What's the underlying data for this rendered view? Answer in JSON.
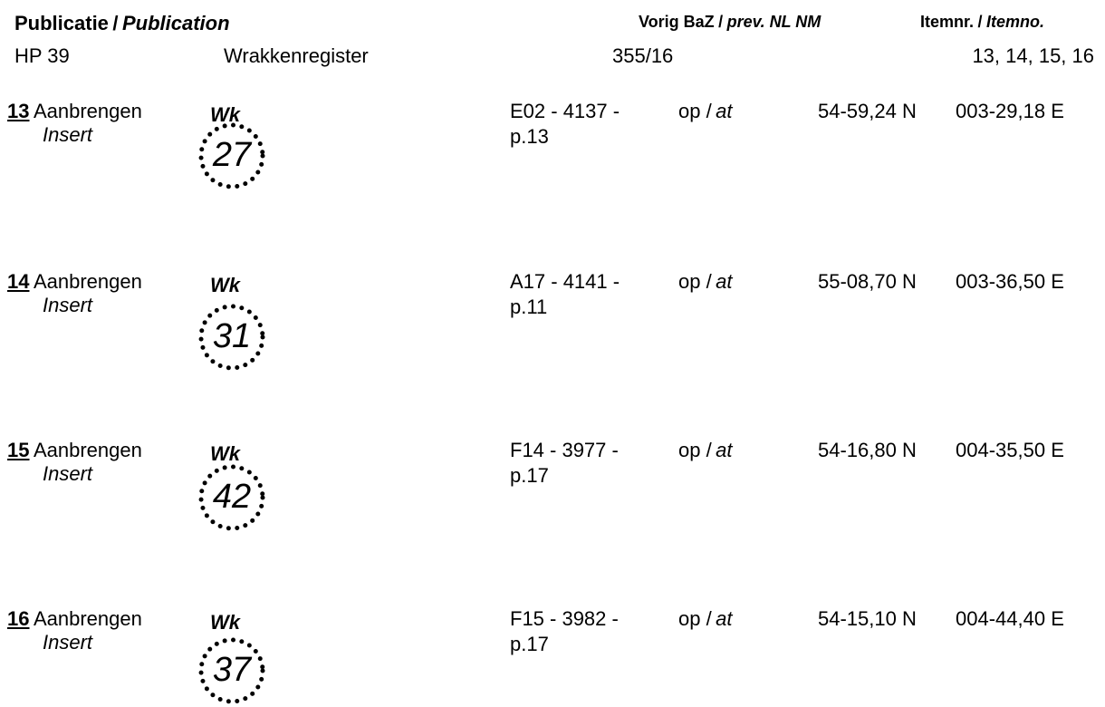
{
  "header": {
    "publication_nl": "Publicatie",
    "slash": "/",
    "publication_en": "Publication",
    "publication_value": "HP 39",
    "register_name": "Wrakkenregister",
    "prev_nl": "Vorig BaZ",
    "prev_en": "prev. NL NM",
    "prev_value": "355/16",
    "itemno_nl": "Itemnr.",
    "itemno_en": "Itemno.",
    "itemno_value": "13, 14, 15, 16"
  },
  "items": [
    {
      "number": "13",
      "action_nl": "Aanbrengen",
      "action_en": "Insert",
      "symbol_label": "Wk",
      "symbol_number": "27",
      "chart_ref": "E02 - 4137 -",
      "page_ref": "p.13",
      "at_nl": "op /",
      "at_en": "at",
      "lat": "54-59,24 N",
      "lon": "003-29,18 E"
    },
    {
      "number": "14",
      "action_nl": "Aanbrengen",
      "action_en": "Insert",
      "symbol_label": "Wk",
      "symbol_number": "31",
      "chart_ref": "A17 - 4141 -",
      "page_ref": "p.11",
      "at_nl": "op /",
      "at_en": "at",
      "lat": "55-08,70 N",
      "lon": "003-36,50 E"
    },
    {
      "number": "15",
      "action_nl": "Aanbrengen",
      "action_en": "Insert",
      "symbol_label": "Wk",
      "symbol_number": "42",
      "chart_ref": "F14 - 3977 -",
      "page_ref": "p.17",
      "at_nl": "op /",
      "at_en": "at",
      "lat": "54-16,80 N",
      "lon": "004-35,50 E"
    },
    {
      "number": "16",
      "action_nl": "Aanbrengen",
      "action_en": "Insert",
      "symbol_label": "Wk",
      "symbol_number": "37",
      "chart_ref": "F15 - 3982 -",
      "page_ref": "p.17",
      "at_nl": "op /",
      "at_en": "at",
      "lat": "54-15,10 N",
      "lon": "004-44,40 E"
    }
  ]
}
